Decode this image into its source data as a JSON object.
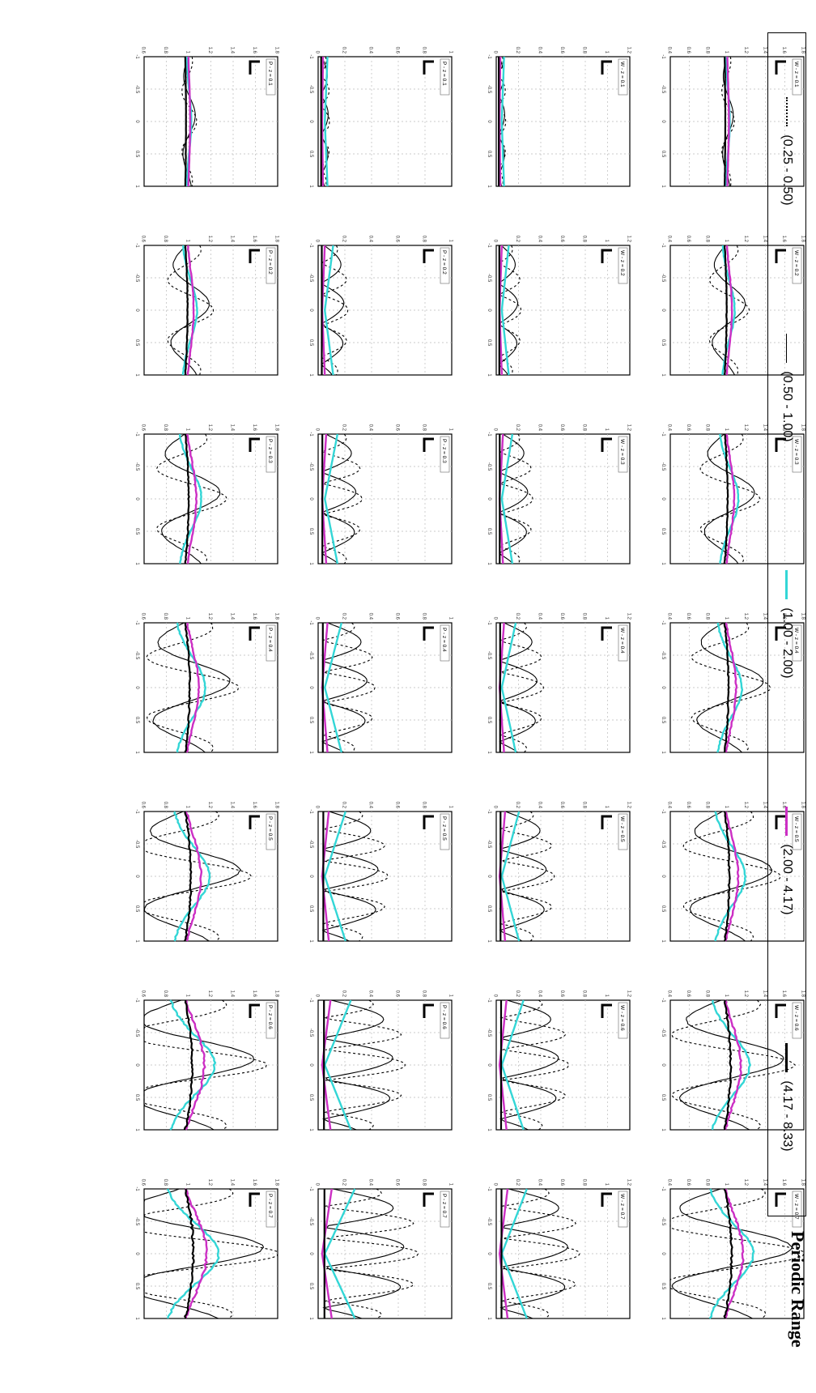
{
  "legend": {
    "title": "Periodic Range",
    "items": [
      {
        "label": "(0.25 - 0.50)",
        "color": "#000000",
        "style": "dotted"
      },
      {
        "label": "(0.50 - 1.00)",
        "color": "#000000",
        "style": "solid-thin"
      },
      {
        "label": "(1.00 - 2.00)",
        "color": "#33d6d6",
        "style": "solid"
      },
      {
        "label": "(2.00 - 4.17)",
        "color": "#cc2fc4",
        "style": "solid"
      },
      {
        "label": "(4.17 - 8.33)",
        "color": "#000000",
        "style": "solid-thick"
      }
    ]
  },
  "chart_data": {
    "type": "line",
    "layout": "grid 4 rows x 7 columns of small panels",
    "x_range": [
      -1,
      1
    ],
    "x_ticks": [
      "-1",
      "-0.5",
      "0",
      "0.5",
      "1"
    ],
    "panel_rows": [
      {
        "y_ticks": [
          "0.4",
          "0.6",
          "0.8",
          "1",
          "1.2",
          "1.4",
          "1.6",
          "1.8"
        ],
        "ylim": [
          0.4,
          1.8
        ],
        "labels": [
          "W - z = 0.1",
          "W - z = 0.2",
          "W - z = 0.3",
          "W - z = 0.4",
          "W - z = 0.5",
          "W - z = 0.6",
          "W - z = 0.7"
        ]
      },
      {
        "y_ticks": [
          "0",
          "0.2",
          "0.4",
          "0.6",
          "0.8",
          "1",
          "1.2"
        ],
        "ylim": [
          0,
          1.2
        ],
        "labels": [
          "W - z = 0.1",
          "W - z = 0.2",
          "W - z = 0.3",
          "W - z = 0.4",
          "W - z = 0.5",
          "W - z = 0.6",
          "W - z = 0.7"
        ]
      },
      {
        "y_ticks": [
          "0",
          "0.2",
          "0.4",
          "0.6",
          "0.8",
          "1"
        ],
        "ylim": [
          0,
          1
        ],
        "labels": [
          "P - z = 0.1",
          "P - z = 0.2",
          "P - z = 0.3",
          "P - z = 0.4",
          "P - z = 0.5",
          "P - z = 0.6",
          "P - z = 0.7"
        ]
      },
      {
        "y_ticks": [
          "0.6",
          "0.8",
          "1",
          "1.2",
          "1.4",
          "1.6",
          "1.8"
        ],
        "ylim": [
          0.6,
          1.8
        ],
        "labels": [
          "P - z = 0.1",
          "P - z = 0.2",
          "P - z = 0.3",
          "P - z = 0.4",
          "P - z = 0.5",
          "P - z = 0.6",
          "P - z = 0.7"
        ]
      }
    ],
    "amplitude_by_column": [
      0.08,
      0.25,
      0.38,
      0.5,
      0.62,
      0.78,
      0.9
    ],
    "series": [
      {
        "name": "(0.25 - 0.50)",
        "color": "#000000",
        "dash": "3,3"
      },
      {
        "name": "(0.50 - 1.00)",
        "color": "#000000",
        "dash": ""
      },
      {
        "name": "(1.00 - 2.00)",
        "color": "#33d6d6",
        "dash": ""
      },
      {
        "name": "(2.00 - 4.17)",
        "color": "#cc2fc4",
        "dash": ""
      },
      {
        "name": "(4.17 - 8.33)",
        "color": "#000000",
        "dash": ""
      }
    ]
  }
}
